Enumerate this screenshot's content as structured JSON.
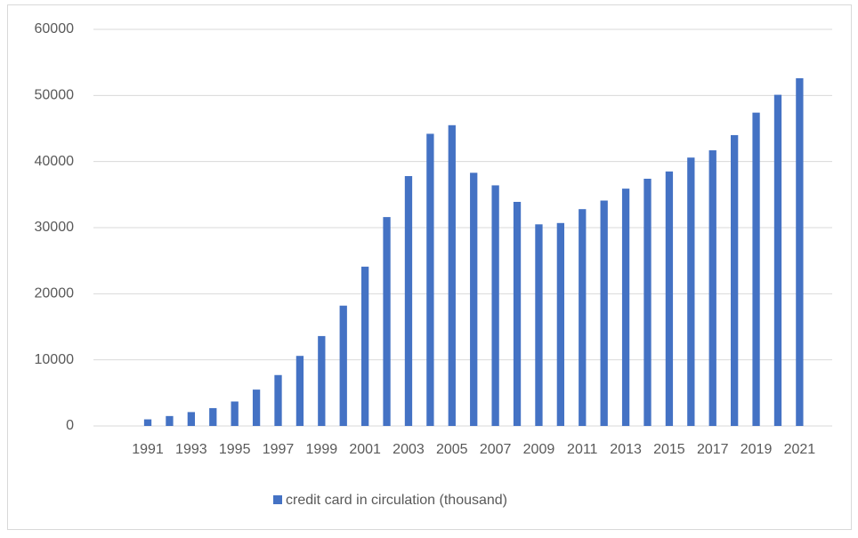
{
  "chart_data": {
    "type": "bar",
    "categories": [
      null,
      null,
      "1991",
      null,
      "1993",
      null,
      "1995",
      null,
      "1997",
      null,
      "1999",
      null,
      "2001",
      null,
      "2003",
      null,
      "2005",
      null,
      "2007",
      null,
      "2009",
      null,
      "2011",
      null,
      "2013",
      null,
      "2015",
      null,
      "2017",
      null,
      "2019",
      null,
      "2021",
      null
    ],
    "series": [
      {
        "name": "credit card in circulation (thousand)",
        "color": "#4472c4",
        "values": [
          null,
          null,
          1000,
          1500,
          2100,
          2700,
          3700,
          5500,
          7700,
          10600,
          13600,
          18200,
          24100,
          31600,
          37800,
          44200,
          45500,
          38300,
          36400,
          33900,
          30500,
          30700,
          32800,
          34100,
          35900,
          37400,
          38500,
          40600,
          41700,
          44000,
          47400,
          50100,
          52600,
          null
        ]
      }
    ],
    "ylim": [
      0,
      60000
    ],
    "yticks": [
      0,
      10000,
      20000,
      30000,
      40000,
      50000,
      60000
    ],
    "grid": true,
    "legend": "bottom"
  }
}
